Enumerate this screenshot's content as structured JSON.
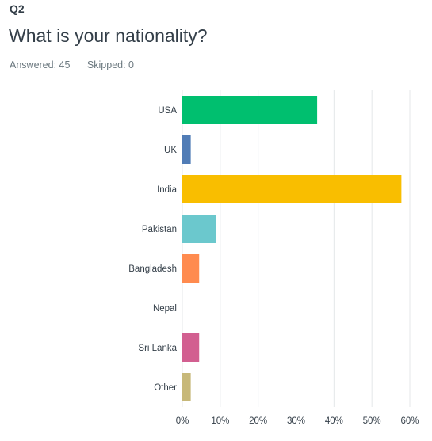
{
  "question": {
    "number": "Q2",
    "title": "What is your nationality?",
    "answered": "Answered: 45",
    "skipped": "Skipped: 0"
  },
  "chart_data": {
    "type": "bar",
    "orientation": "horizontal",
    "categories": [
      "USA",
      "UK",
      "India",
      "Pakistan",
      "Bangladesh",
      "Nepal",
      "Sri Lanka",
      "Other"
    ],
    "values": [
      35.56,
      2.22,
      57.78,
      8.89,
      4.44,
      0,
      4.44,
      2.22
    ],
    "colors": [
      "#00bf6f",
      "#507cb6",
      "#f9be00",
      "#6bc8cd",
      "#ff8b4f",
      "#7d5e90",
      "#d25f90",
      "#c7b879"
    ],
    "xlim": [
      0,
      60
    ],
    "x_ticks": [
      "0%",
      "10%",
      "20%",
      "30%",
      "40%",
      "50%",
      "60%"
    ],
    "grid": true
  }
}
